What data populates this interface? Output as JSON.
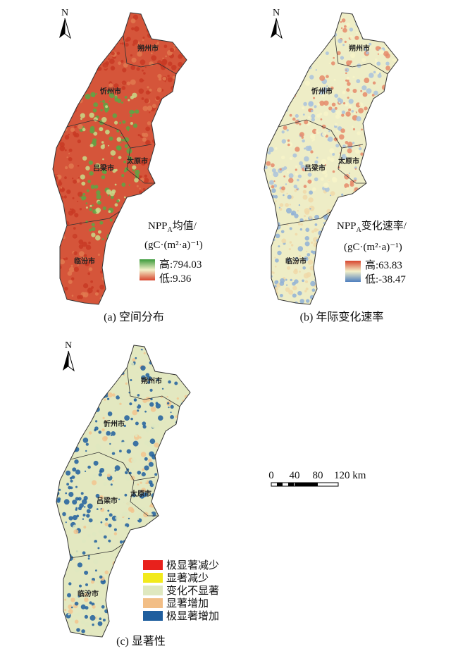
{
  "panels": [
    {
      "north": "N",
      "cities": [
        "朔州市",
        "忻州市",
        "太原市",
        "吕梁市",
        "临汾市"
      ],
      "legend": {
        "title": "NPP",
        "title_sub": "A",
        "title_rest": "均值/",
        "unit": "(gC·(m²·a)⁻¹)",
        "high": "高:794.03",
        "low": "低:9.36"
      },
      "caption": "(a) 空间分布"
    },
    {
      "north": "N",
      "cities": [
        "朔州市",
        "忻州市",
        "太原市",
        "吕梁市",
        "临汾市"
      ],
      "legend": {
        "title": "NPP",
        "title_sub": "A",
        "title_rest": "变化速率/",
        "unit": "(gC·(m²·a)⁻¹)",
        "high": "高:63.83",
        "low": "低:-38.47"
      },
      "caption": "(b) 年际变化速率"
    },
    {
      "north": "N",
      "cities": [
        "朔州市",
        "忻州市",
        "太原市",
        "吕梁市",
        "临汾市"
      ],
      "legend": {
        "items": [
          "极显著减少",
          "显著减少",
          "变化不显著",
          "显著增加",
          "极显著增加"
        ]
      },
      "caption": "(c) 显著性"
    }
  ],
  "scale_bar": {
    "labels": [
      "0",
      "40",
      "80",
      "120 km"
    ]
  }
}
